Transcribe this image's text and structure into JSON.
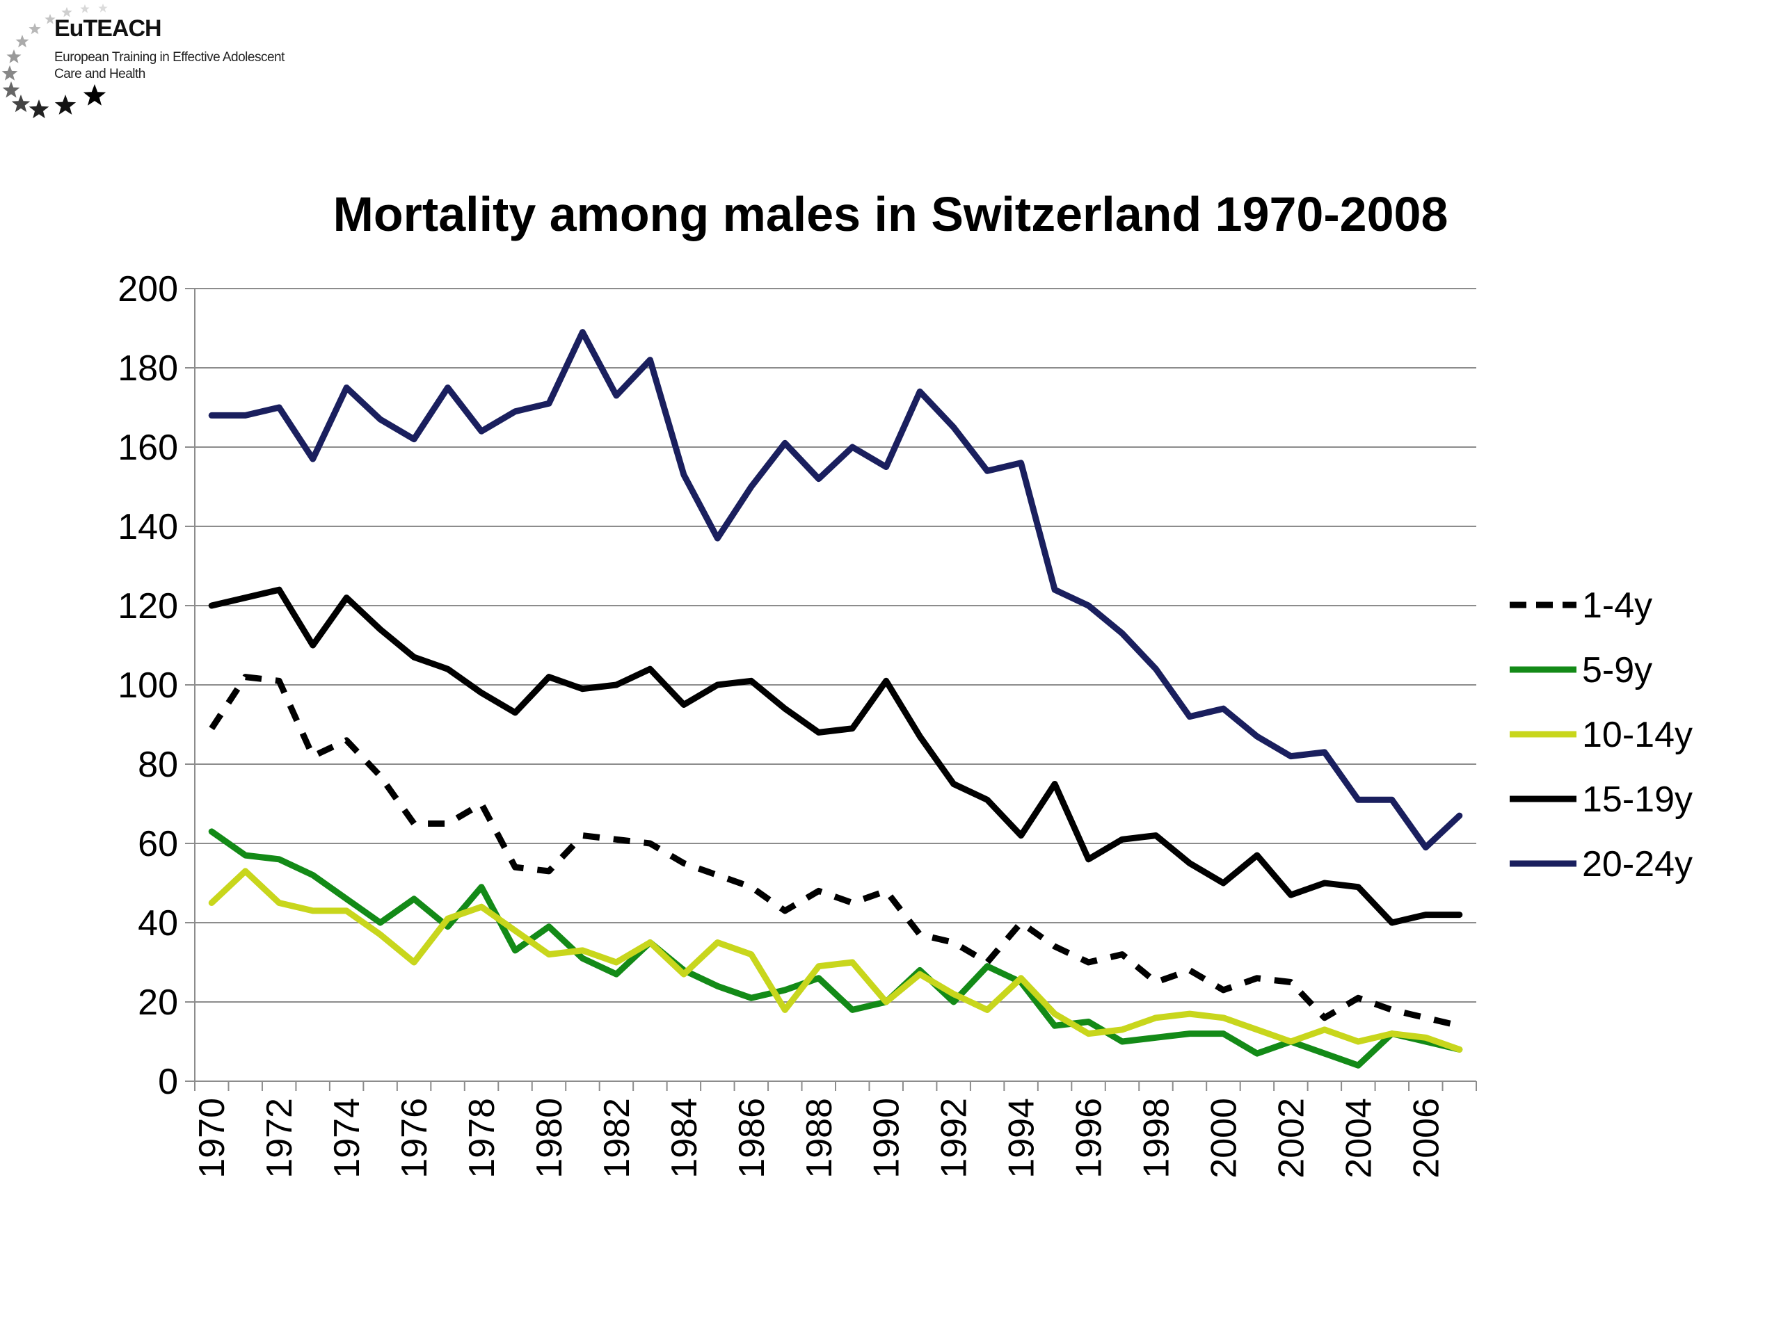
{
  "logo": {
    "title": "EuTEACH",
    "subtitle_line1": "European Training in Effective Adolescent",
    "subtitle_line2": "Care and Health",
    "icon": "euteach-stars-logo"
  },
  "chart_data": {
    "type": "line",
    "title": "Mortality among males in Switzerland 1970-2008",
    "xlabel": "",
    "ylabel": "",
    "ylim": [
      0,
      200
    ],
    "yticks": [
      0,
      20,
      40,
      60,
      80,
      100,
      120,
      140,
      160,
      180,
      200
    ],
    "x": [
      1970,
      1971,
      1972,
      1973,
      1974,
      1975,
      1976,
      1977,
      1978,
      1979,
      1980,
      1981,
      1982,
      1983,
      1984,
      1985,
      1986,
      1987,
      1988,
      1989,
      1990,
      1991,
      1992,
      1993,
      1994,
      1995,
      1996,
      1997,
      1998,
      1999,
      2000,
      2001,
      2002,
      2003,
      2004,
      2005,
      2006,
      2007
    ],
    "xticks": [
      "1970",
      "1972",
      "1974",
      "1976",
      "1978",
      "1980",
      "1982",
      "1984",
      "1986",
      "1988",
      "1990",
      "1992",
      "1994",
      "1996",
      "1998",
      "2000",
      "2002",
      "2004",
      "2006"
    ],
    "grid": "horizontal",
    "legend_position": "right",
    "series": [
      {
        "name": "1-4y",
        "color": "#000000",
        "dashed": true,
        "values": [
          89,
          102,
          101,
          82,
          86,
          77,
          65,
          65,
          70,
          54,
          53,
          62,
          61,
          60,
          55,
          52,
          49,
          43,
          48,
          45,
          48,
          37,
          35,
          30,
          40,
          34,
          30,
          32,
          25,
          28,
          23,
          26,
          25,
          16,
          21,
          18,
          16,
          14
        ]
      },
      {
        "name": "5-9y",
        "color": "#138a17",
        "dashed": false,
        "values": [
          63,
          57,
          56,
          52,
          46,
          40,
          46,
          39,
          49,
          33,
          39,
          31,
          27,
          35,
          28,
          24,
          21,
          23,
          26,
          18,
          20,
          28,
          20,
          29,
          25,
          14,
          15,
          10,
          11,
          12,
          12,
          7,
          10,
          7,
          4,
          12,
          10,
          8
        ]
      },
      {
        "name": "10-14y",
        "color": "#c8d61c",
        "dashed": false,
        "values": [
          45,
          53,
          45,
          43,
          43,
          37,
          30,
          41,
          44,
          38,
          32,
          33,
          30,
          35,
          27,
          35,
          32,
          18,
          29,
          30,
          20,
          27,
          22,
          18,
          26,
          17,
          12,
          13,
          16,
          17,
          16,
          13,
          10,
          13,
          10,
          12,
          11,
          8
        ]
      },
      {
        "name": "15-19y",
        "color": "#000000",
        "dashed": false,
        "values": [
          120,
          122,
          124,
          110,
          122,
          114,
          107,
          104,
          98,
          93,
          102,
          99,
          100,
          104,
          95,
          100,
          101,
          94,
          88,
          89,
          101,
          87,
          75,
          71,
          62,
          75,
          56,
          61,
          62,
          55,
          50,
          57,
          47,
          50,
          49,
          40,
          42,
          42
        ]
      },
      {
        "name": "20-24y",
        "color": "#1a1f5e",
        "dashed": false,
        "values": [
          168,
          168,
          170,
          157,
          175,
          167,
          162,
          175,
          164,
          169,
          171,
          189,
          173,
          182,
          153,
          137,
          150,
          161,
          152,
          160,
          155,
          174,
          165,
          154,
          156,
          124,
          120,
          113,
          104,
          92,
          94,
          87,
          82,
          83,
          71,
          71,
          59,
          67
        ]
      }
    ]
  }
}
